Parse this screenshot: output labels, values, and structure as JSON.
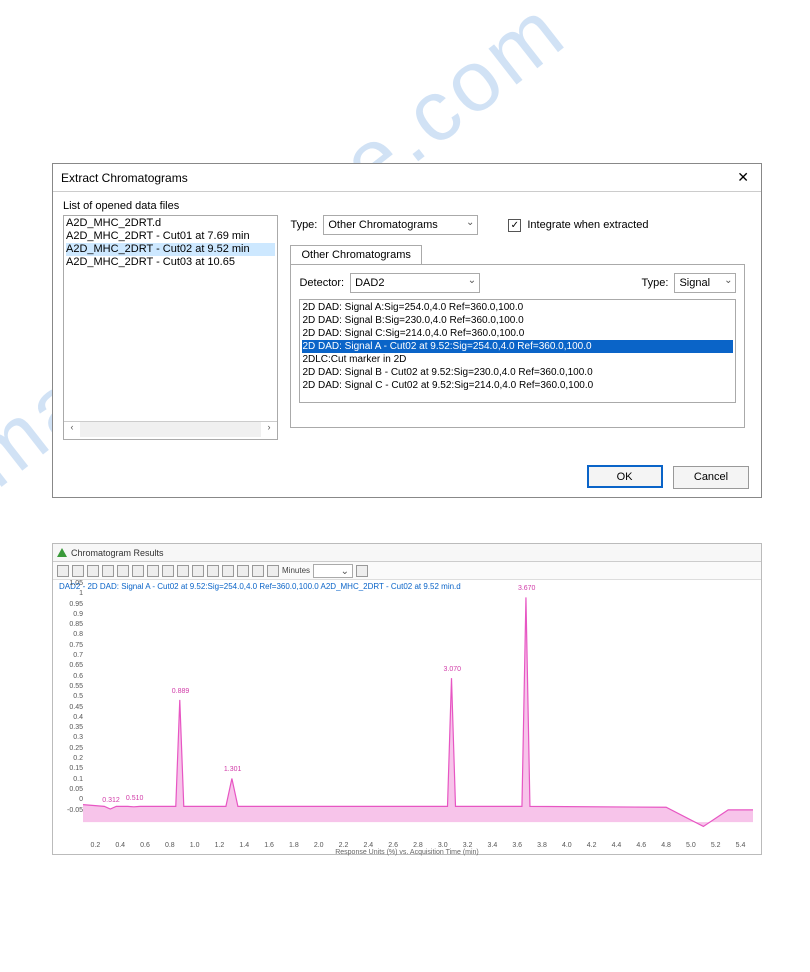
{
  "dialog": {
    "title": "Extract Chromatograms",
    "list_label": "List of opened data files",
    "files": [
      {
        "name": "A2D_MHC_2DRT.d",
        "sel": false
      },
      {
        "name": "A2D_MHC_2DRT - Cut01 at 7.69 min",
        "sel": false
      },
      {
        "name": "A2D_MHC_2DRT - Cut02 at 9.52 min",
        "sel": true
      },
      {
        "name": "A2D_MHC_2DRT - Cut03 at 10.65",
        "sel": false
      }
    ],
    "type_label": "Type:",
    "type_value": "Other Chromatograms",
    "integrate_label": "Integrate when extracted",
    "integrate_checked": true,
    "tab_label": "Other Chromatograms",
    "detector_label": "Detector:",
    "detector_value": "DAD2",
    "type2_label": "Type:",
    "type2_value": "Signal",
    "signals": [
      {
        "t": "2D DAD: Signal A:Sig=254.0,4.0  Ref=360.0,100.0",
        "sel": false
      },
      {
        "t": "2D DAD: Signal B:Sig=230.0,4.0  Ref=360.0,100.0",
        "sel": false
      },
      {
        "t": "2D DAD: Signal C:Sig=214.0,4.0  Ref=360.0,100.0",
        "sel": false
      },
      {
        "t": "2D DAD: Signal A - Cut02 at 9.52:Sig=254.0,4.0  Ref=360.0,100.0",
        "sel": true
      },
      {
        "t": "2DLC:Cut marker in 2D",
        "sel": false
      },
      {
        "t": "2D DAD: Signal B - Cut02 at 9.52:Sig=230.0,4.0  Ref=360.0,100.0",
        "sel": false
      },
      {
        "t": "2D DAD: Signal C - Cut02 at 9.52:Sig=214.0,4.0  Ref=360.0,100.0",
        "sel": false
      }
    ],
    "ok": "OK",
    "cancel": "Cancel"
  },
  "chrom": {
    "title": "Chromatogram Results",
    "toolbar_text": "Minutes",
    "caption": "DAD2 - 2D DAD: Signal A - Cut02 at 9.52:Sig=254.0,4.0  Ref=360.0,100.0 A2D_MHC_2DRT - Cut02 at 9.52 min.d",
    "yscale_label": "x10⁻¹",
    "xaxis_title": "Response Units (%) vs. Acquisition Time (min)",
    "line_color": "#e756c3",
    "fill_color": "rgba(231,86,195,0.35)",
    "background_color": "#ffffff",
    "ylim": [
      -0.05,
      1.05
    ],
    "ytick_step": 0.05,
    "xlim": [
      0.1,
      5.5
    ],
    "xtick_step": 0.2,
    "peaks": [
      {
        "x": 0.32,
        "h": 0.06,
        "label": "0.312"
      },
      {
        "x": 0.51,
        "h": 0.07,
        "label": "0.510"
      },
      {
        "x": 0.88,
        "h": 0.56,
        "label": "0.889"
      },
      {
        "x": 1.3,
        "h": 0.2,
        "label": "1.301"
      },
      {
        "x": 3.07,
        "h": 0.66,
        "label": "3.070"
      },
      {
        "x": 3.67,
        "h": 1.03,
        "label": "3.670"
      }
    ],
    "baseline": 0.08,
    "tail_dip_x": 5.1,
    "tail_dip_y": -0.02
  },
  "watermark": "manualshive.com"
}
